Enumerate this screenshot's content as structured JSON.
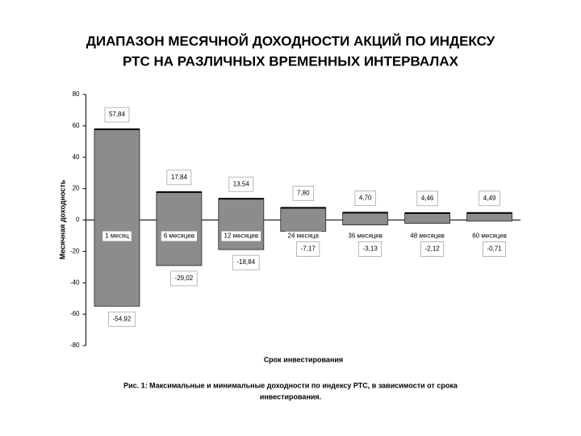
{
  "chart_data": {
    "type": "range-bar",
    "title_lines": [
      "ДИАПАЗОН МЕСЯЧНОЙ ДОХОДНОСТИ АКЦИЙ ПО ИНДЕКСУ",
      "РТС НА РАЗЛИЧНЫХ ВРЕМЕННЫХ ИНТЕРВАЛАХ"
    ],
    "y_label": "Месячная доходность",
    "x_label": "Срок инвестирования",
    "caption_lines": [
      "Рис. 1: Максимальные и минимальные доходности по индексу РТС, в зависимости от срока",
      "инвестирования."
    ],
    "categories": [
      "1 месяц",
      "6 месяцев",
      "12 месяцев",
      "24 месяца",
      "36 месяцев",
      "48 месяцев",
      "60 месяцев"
    ],
    "high": {
      "values": [
        57.84,
        17.84,
        13.54,
        7.8,
        4.7,
        4.46,
        4.49
      ],
      "value_labels": [
        "57,84",
        "17,84",
        "13,54",
        "7,80",
        "4,70",
        "4,46",
        "4,49"
      ]
    },
    "low": {
      "values": [
        -54.92,
        -29.02,
        -18.84,
        -7.17,
        -3.13,
        -2.12,
        -0.71
      ],
      "value_labels": [
        "-54,92",
        "-29,02",
        "-18,84",
        "-7,17",
        "-3,13",
        "-2,12",
        "-0,71"
      ]
    },
    "color": "#8c8c8c",
    "ylim": [
      -80,
      80
    ],
    "yticks": [
      80,
      60,
      40,
      20,
      0,
      -20,
      -40,
      -60,
      -80
    ]
  }
}
